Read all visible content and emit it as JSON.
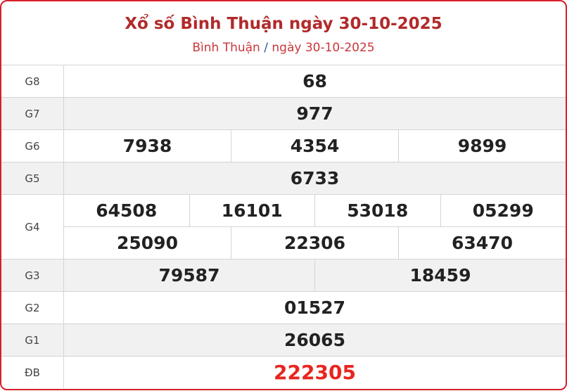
{
  "header": {
    "title": "Xổ số Bình Thuận ngày 30-10-2025",
    "breadcrumb_province": "Bình Thuận",
    "breadcrumb_sep": "/",
    "breadcrumb_date": "ngày 30-10-2025"
  },
  "prizes": [
    {
      "label": "G8",
      "numbers": [
        "68"
      ]
    },
    {
      "label": "G7",
      "numbers": [
        "977"
      ]
    },
    {
      "label": "G6",
      "numbers": [
        "7938",
        "4354",
        "9899"
      ]
    },
    {
      "label": "G5",
      "numbers": [
        "6733"
      ]
    },
    {
      "label": "G4",
      "numbers": [
        "64508",
        "16101",
        "53018",
        "05299",
        "25090",
        "22306",
        "63470"
      ]
    },
    {
      "label": "G3",
      "numbers": [
        "79587",
        "18459"
      ]
    },
    {
      "label": "G2",
      "numbers": [
        "01527"
      ]
    },
    {
      "label": "G1",
      "numbers": [
        "26065"
      ]
    },
    {
      "label": "ĐB",
      "numbers": [
        "222305"
      ]
    }
  ],
  "colors": {
    "accent": "#d8202a",
    "title": "#b22a2a",
    "special": "#e8251e"
  }
}
